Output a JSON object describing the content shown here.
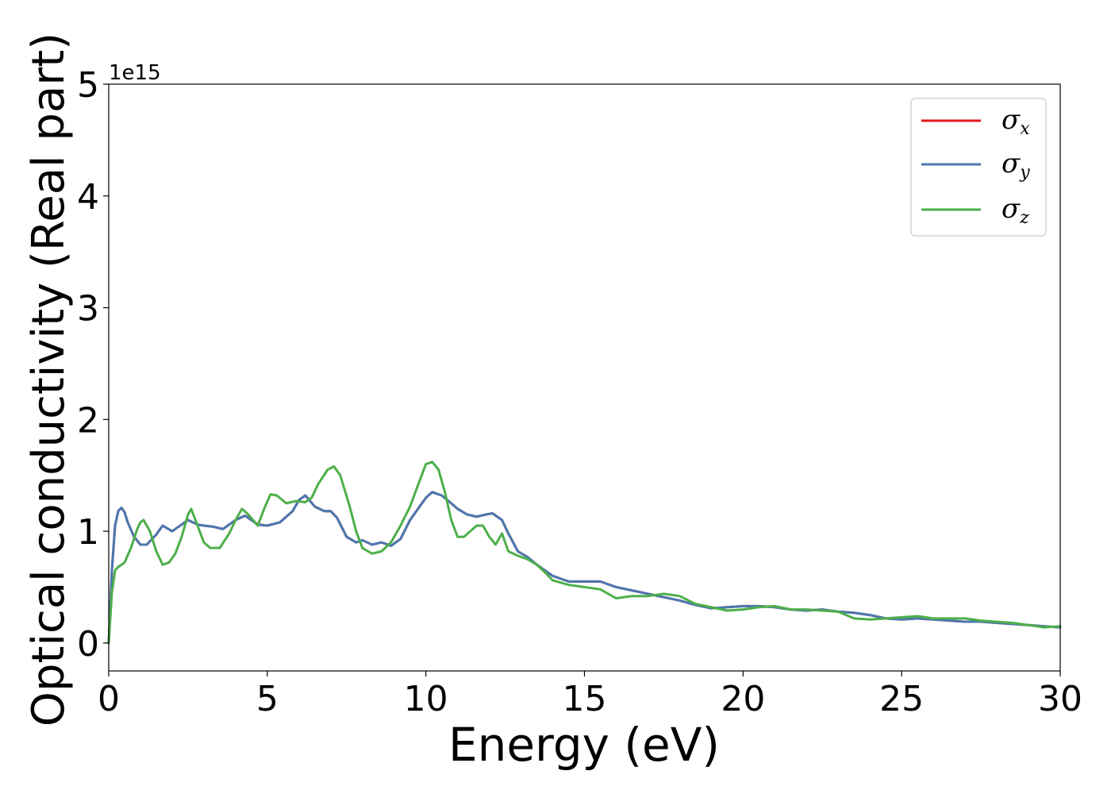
{
  "chart_data": {
    "type": "line",
    "xlabel": "Energy (eV)",
    "ylabel": "Optical conductivity (Real part)",
    "y_offset_label": "1e15",
    "xlim": [
      0,
      30
    ],
    "ylim": [
      -0.25,
      5.0
    ],
    "y_scale_factor": 1000000000000000.0,
    "x_ticks": [
      0,
      5,
      10,
      15,
      20,
      25,
      30
    ],
    "x_tick_labels": [
      "0",
      "5",
      "10",
      "15",
      "20",
      "25",
      "30"
    ],
    "y_ticks": [
      0,
      1,
      2,
      3,
      4,
      5
    ],
    "y_tick_labels": [
      "0",
      "1",
      "2",
      "3",
      "4",
      "5"
    ],
    "grid": false,
    "legend_position": "top-right",
    "series": [
      {
        "name": "σx",
        "legend_symbol": "σ",
        "legend_sub": "x",
        "color": "#e41a1c",
        "x": [
          0,
          0.1,
          0.2,
          0.3,
          0.4,
          0.5,
          0.6,
          0.8,
          1.0,
          1.2,
          1.5,
          1.7,
          2.0,
          2.2,
          2.5,
          2.8,
          3.0,
          3.3,
          3.6,
          4.0,
          4.3,
          4.7,
          5.0,
          5.4,
          5.8,
          6.0,
          6.2,
          6.5,
          6.8,
          7.0,
          7.2,
          7.5,
          7.8,
          8.0,
          8.3,
          8.6,
          8.9,
          9.2,
          9.5,
          9.8,
          10.0,
          10.2,
          10.5,
          10.8,
          11.0,
          11.3,
          11.6,
          11.9,
          12.1,
          12.4,
          12.6,
          12.9,
          13.2,
          13.5,
          13.8,
          14.0,
          14.5,
          15.0,
          15.5,
          16.0,
          16.5,
          17.0,
          17.5,
          18.0,
          18.5,
          19.0,
          19.5,
          20.0,
          20.5,
          21.0,
          21.5,
          22.0,
          22.5,
          23.0,
          23.5,
          24.0,
          24.5,
          25.0,
          25.5,
          26.0,
          26.5,
          27.0,
          27.5,
          28.0,
          28.5,
          29.0,
          29.5,
          30.0
        ],
        "y": [
          0.0,
          0.65,
          1.05,
          1.18,
          1.21,
          1.17,
          1.08,
          0.95,
          0.88,
          0.88,
          0.97,
          1.05,
          1.0,
          1.04,
          1.1,
          1.06,
          1.05,
          1.04,
          1.02,
          1.1,
          1.14,
          1.06,
          1.05,
          1.08,
          1.18,
          1.28,
          1.32,
          1.22,
          1.18,
          1.18,
          1.12,
          0.95,
          0.9,
          0.92,
          0.88,
          0.9,
          0.87,
          0.93,
          1.1,
          1.22,
          1.3,
          1.35,
          1.32,
          1.25,
          1.2,
          1.15,
          1.13,
          1.15,
          1.16,
          1.1,
          0.98,
          0.82,
          0.77,
          0.7,
          0.64,
          0.6,
          0.55,
          0.55,
          0.55,
          0.5,
          0.47,
          0.44,
          0.41,
          0.38,
          0.34,
          0.31,
          0.32,
          0.33,
          0.33,
          0.32,
          0.3,
          0.29,
          0.3,
          0.28,
          0.27,
          0.25,
          0.22,
          0.21,
          0.22,
          0.21,
          0.2,
          0.19,
          0.19,
          0.18,
          0.17,
          0.16,
          0.15,
          0.14
        ]
      },
      {
        "name": "σy",
        "legend_symbol": "σ",
        "legend_sub": "y",
        "color": "#4a78b0",
        "x": [
          0,
          0.1,
          0.2,
          0.3,
          0.4,
          0.5,
          0.6,
          0.8,
          1.0,
          1.2,
          1.5,
          1.7,
          2.0,
          2.2,
          2.5,
          2.8,
          3.0,
          3.3,
          3.6,
          4.0,
          4.3,
          4.7,
          5.0,
          5.4,
          5.8,
          6.0,
          6.2,
          6.5,
          6.8,
          7.0,
          7.2,
          7.5,
          7.8,
          8.0,
          8.3,
          8.6,
          8.9,
          9.2,
          9.5,
          9.8,
          10.0,
          10.2,
          10.5,
          10.8,
          11.0,
          11.3,
          11.6,
          11.9,
          12.1,
          12.4,
          12.6,
          12.9,
          13.2,
          13.5,
          13.8,
          14.0,
          14.5,
          15.0,
          15.5,
          16.0,
          16.5,
          17.0,
          17.5,
          18.0,
          18.5,
          19.0,
          19.5,
          20.0,
          20.5,
          21.0,
          21.5,
          22.0,
          22.5,
          23.0,
          23.5,
          24.0,
          24.5,
          25.0,
          25.5,
          26.0,
          26.5,
          27.0,
          27.5,
          28.0,
          28.5,
          29.0,
          29.5,
          30.0
        ],
        "y": [
          0.0,
          0.65,
          1.05,
          1.18,
          1.21,
          1.17,
          1.08,
          0.95,
          0.88,
          0.88,
          0.97,
          1.05,
          1.0,
          1.04,
          1.1,
          1.06,
          1.05,
          1.04,
          1.02,
          1.1,
          1.14,
          1.06,
          1.05,
          1.08,
          1.18,
          1.28,
          1.32,
          1.22,
          1.18,
          1.18,
          1.12,
          0.95,
          0.9,
          0.92,
          0.88,
          0.9,
          0.87,
          0.93,
          1.1,
          1.22,
          1.3,
          1.35,
          1.32,
          1.25,
          1.2,
          1.15,
          1.13,
          1.15,
          1.16,
          1.1,
          0.98,
          0.82,
          0.77,
          0.7,
          0.64,
          0.6,
          0.55,
          0.55,
          0.55,
          0.5,
          0.47,
          0.44,
          0.41,
          0.38,
          0.34,
          0.31,
          0.32,
          0.33,
          0.33,
          0.32,
          0.3,
          0.29,
          0.3,
          0.28,
          0.27,
          0.25,
          0.22,
          0.21,
          0.22,
          0.21,
          0.2,
          0.19,
          0.19,
          0.18,
          0.17,
          0.16,
          0.15,
          0.14
        ]
      },
      {
        "name": "σz",
        "legend_symbol": "σ",
        "legend_sub": "z",
        "color": "#4daf4a",
        "x": [
          0,
          0.1,
          0.2,
          0.3,
          0.5,
          0.7,
          0.9,
          1.0,
          1.1,
          1.3,
          1.5,
          1.7,
          1.9,
          2.1,
          2.3,
          2.5,
          2.6,
          2.8,
          3.0,
          3.2,
          3.5,
          3.8,
          4.0,
          4.2,
          4.4,
          4.7,
          4.9,
          5.1,
          5.3,
          5.6,
          5.9,
          6.2,
          6.4,
          6.6,
          6.9,
          7.1,
          7.3,
          7.6,
          7.8,
          8.0,
          8.3,
          8.6,
          8.9,
          9.2,
          9.5,
          9.8,
          10.0,
          10.2,
          10.4,
          10.6,
          10.8,
          11.0,
          11.2,
          11.4,
          11.6,
          11.8,
          12.0,
          12.2,
          12.4,
          12.6,
          12.9,
          13.2,
          13.5,
          13.8,
          14.0,
          14.5,
          15.0,
          15.5,
          16.0,
          16.5,
          17.0,
          17.5,
          18.0,
          18.5,
          19.0,
          19.5,
          20.0,
          20.5,
          21.0,
          21.5,
          22.0,
          22.5,
          23.0,
          23.5,
          24.0,
          24.5,
          25.0,
          25.5,
          26.0,
          26.5,
          27.0,
          27.5,
          28.0,
          28.5,
          29.0,
          29.5,
          30.0
        ],
        "y": [
          0.0,
          0.45,
          0.65,
          0.68,
          0.72,
          0.85,
          1.02,
          1.08,
          1.1,
          1.0,
          0.82,
          0.7,
          0.72,
          0.8,
          0.95,
          1.15,
          1.2,
          1.05,
          0.9,
          0.85,
          0.85,
          0.98,
          1.1,
          1.2,
          1.15,
          1.05,
          1.2,
          1.33,
          1.32,
          1.25,
          1.27,
          1.26,
          1.3,
          1.42,
          1.55,
          1.58,
          1.5,
          1.22,
          1.0,
          0.85,
          0.8,
          0.82,
          0.9,
          1.05,
          1.22,
          1.45,
          1.6,
          1.62,
          1.55,
          1.35,
          1.1,
          0.95,
          0.95,
          1.0,
          1.05,
          1.05,
          0.95,
          0.88,
          0.98,
          0.82,
          0.78,
          0.75,
          0.7,
          0.62,
          0.56,
          0.52,
          0.5,
          0.48,
          0.4,
          0.42,
          0.42,
          0.44,
          0.42,
          0.35,
          0.32,
          0.29,
          0.3,
          0.32,
          0.33,
          0.3,
          0.3,
          0.29,
          0.28,
          0.22,
          0.21,
          0.22,
          0.23,
          0.24,
          0.22,
          0.22,
          0.22,
          0.2,
          0.19,
          0.18,
          0.16,
          0.14,
          0.15
        ]
      }
    ]
  }
}
